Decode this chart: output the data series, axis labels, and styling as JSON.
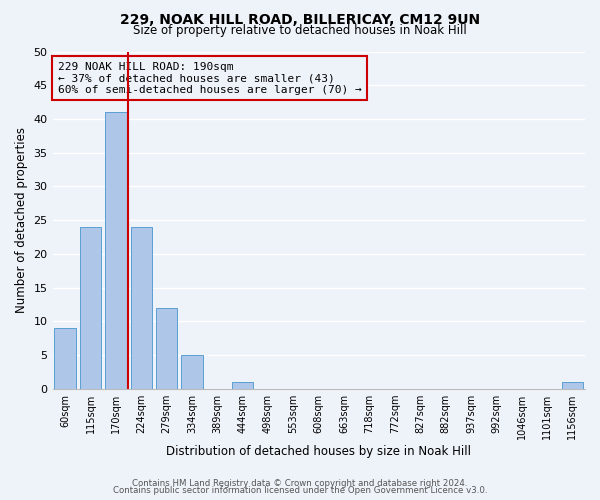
{
  "title": "229, NOAK HILL ROAD, BILLERICAY, CM12 9UN",
  "subtitle": "Size of property relative to detached houses in Noak Hill",
  "xlabel": "Distribution of detached houses by size in Noak Hill",
  "ylabel": "Number of detached properties",
  "bin_labels": [
    "60sqm",
    "115sqm",
    "170sqm",
    "224sqm",
    "279sqm",
    "334sqm",
    "389sqm",
    "444sqm",
    "498sqm",
    "553sqm",
    "608sqm",
    "663sqm",
    "718sqm",
    "772sqm",
    "827sqm",
    "882sqm",
    "937sqm",
    "992sqm",
    "1046sqm",
    "1101sqm",
    "1156sqm"
  ],
  "bar_values": [
    9,
    24,
    41,
    24,
    12,
    5,
    0,
    1,
    0,
    0,
    0,
    0,
    0,
    0,
    0,
    0,
    0,
    0,
    0,
    0,
    1
  ],
  "bar_color": "#aec6e8",
  "bar_edgecolor": "#5a9fd4",
  "vline_color": "#cc0000",
  "annotation_title": "229 NOAK HILL ROAD: 190sqm",
  "annotation_line1": "← 37% of detached houses are smaller (43)",
  "annotation_line2": "60% of semi-detached houses are larger (70) →",
  "annotation_box_edgecolor": "#cc0000",
  "ylim": [
    0,
    50
  ],
  "yticks": [
    0,
    5,
    10,
    15,
    20,
    25,
    30,
    35,
    40,
    45,
    50
  ],
  "footer1": "Contains HM Land Registry data © Crown copyright and database right 2024.",
  "footer2": "Contains public sector information licensed under the Open Government Licence v3.0.",
  "bg_color": "#eef2f9",
  "grid_color": "#ffffff"
}
